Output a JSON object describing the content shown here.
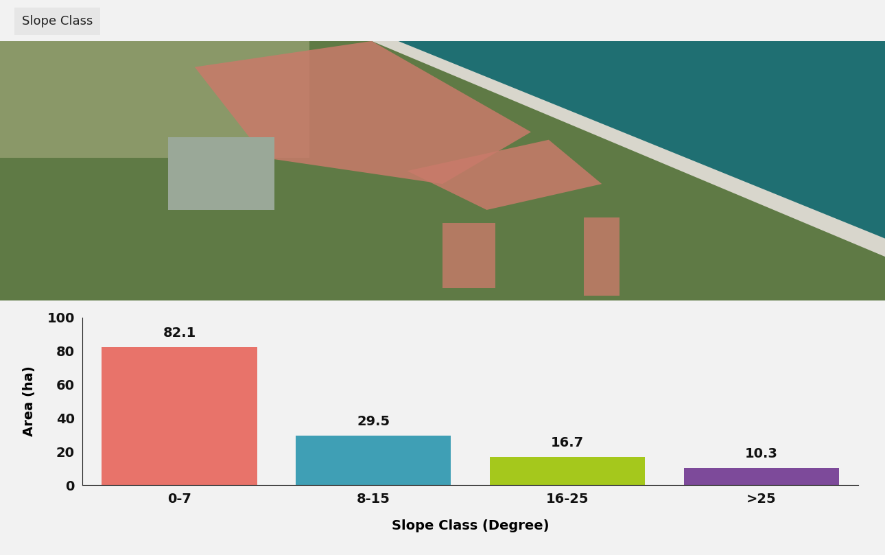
{
  "chart_data": {
    "type": "bar",
    "title": "Slope Class",
    "categories": [
      "0-7",
      "8-15",
      "16-25",
      ">25"
    ],
    "values": [
      82.1,
      29.5,
      16.7,
      10.3
    ],
    "colors": [
      "#e8736a",
      "#3f9fb5",
      "#a5c81c",
      "#7d4a9a"
    ],
    "x_label": "Slope Class (Degree)",
    "y_label": "Area (ha)",
    "ylim": [
      0,
      100
    ],
    "yticks": [
      0,
      20,
      40,
      60,
      80,
      100
    ],
    "grid": false,
    "data_labels": true
  }
}
